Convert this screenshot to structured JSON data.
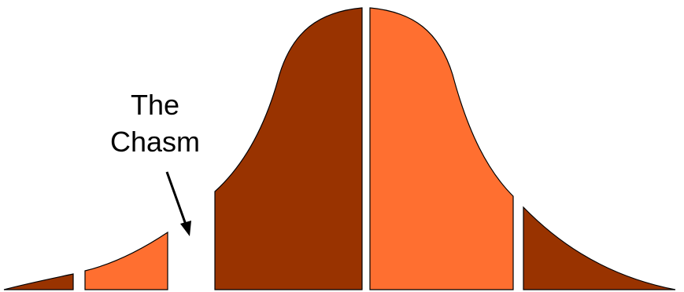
{
  "annotation": {
    "line1": "The",
    "line2": "Chasm"
  },
  "colors": {
    "dark_segment": "#993300",
    "light_segment": "#FF6F30",
    "outline": "#000000",
    "arrow": "#000000",
    "background": "#ffffff"
  },
  "segments": [
    {
      "name": "segment-innovators",
      "fill": "dark_segment"
    },
    {
      "name": "segment-early-adopters",
      "fill": "light_segment"
    },
    {
      "name": "segment-early-majority",
      "fill": "dark_segment"
    },
    {
      "name": "segment-late-majority",
      "fill": "light_segment"
    },
    {
      "name": "segment-laggards",
      "fill": "dark_segment"
    }
  ]
}
